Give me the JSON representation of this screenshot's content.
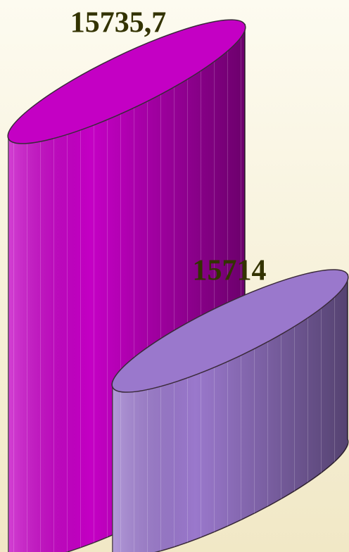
{
  "chart_data": {
    "type": "bar",
    "values": [
      15735.7,
      15714
    ],
    "value_labels": [
      "15735,7",
      "15714"
    ],
    "colors": [
      "#c400c4",
      "#9a78cc"
    ]
  }
}
